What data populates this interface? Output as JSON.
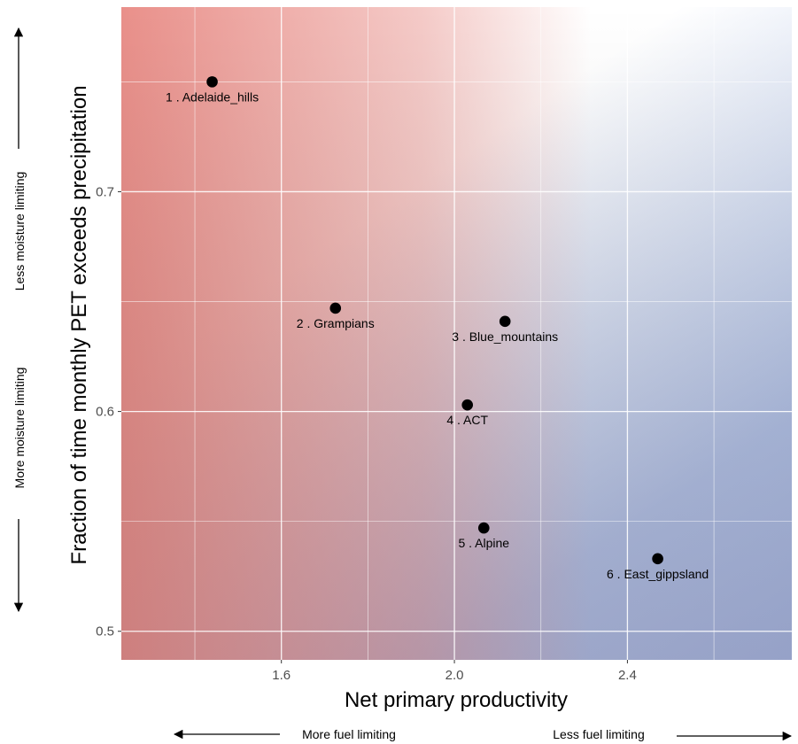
{
  "chart_data": {
    "type": "scatter",
    "xlabel": "Net primary productivity",
    "ylabel": "Fraction of time monthly PET exceeds precipitation",
    "xlim": [
      1.23,
      2.78
    ],
    "ylim": [
      0.487,
      0.784
    ],
    "x_ticks": [
      1.6,
      2.0,
      2.4
    ],
    "x_tick_labels": [
      "1.6",
      "2.0",
      "2.4"
    ],
    "y_ticks": [
      0.5,
      0.6,
      0.7
    ],
    "y_tick_labels": [
      "0.5",
      "0.6",
      "0.7"
    ],
    "grid": true,
    "background": "diagonal gradient: red (low x) to white (high y, high x) to blue (low y, high x)",
    "colors": {
      "warm": "#e88a84",
      "cool": "#a3b8e3",
      "point": "#000000"
    },
    "points": [
      {
        "label": "1 .  Adelaide_hills",
        "x": 1.44,
        "y": 0.75
      },
      {
        "label": "2 .  Grampians",
        "x": 1.725,
        "y": 0.647
      },
      {
        "label": "3 .  Blue_mountains",
        "x": 2.117,
        "y": 0.641
      },
      {
        "label": "4 .  ACT",
        "x": 2.03,
        "y": 0.603
      },
      {
        "label": "5 .  Alpine",
        "x": 2.068,
        "y": 0.547
      },
      {
        "label": "6 .  East_gippsland",
        "x": 2.47,
        "y": 0.533
      }
    ]
  },
  "annotations": {
    "y_top": "Less moisture limiting",
    "y_bottom": "More moisture limiting",
    "x_left": "More fuel limiting",
    "x_right": "Less fuel limiting"
  }
}
